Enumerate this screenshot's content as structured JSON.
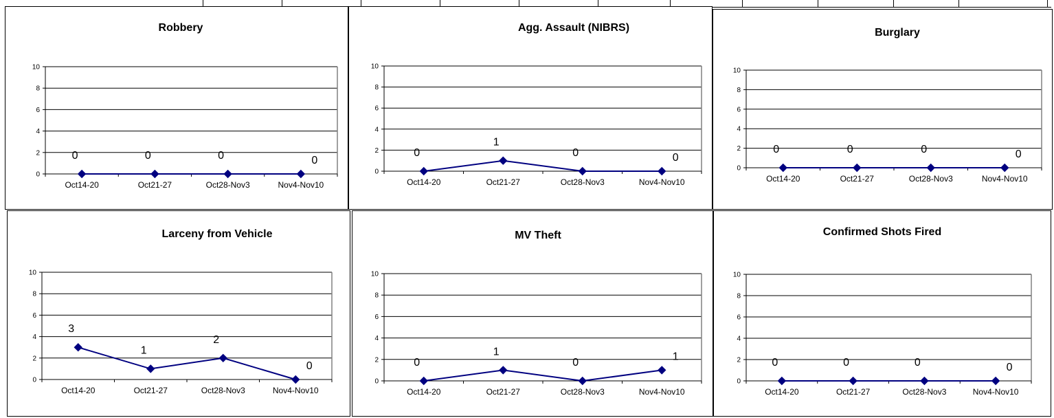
{
  "colors": {
    "series": "#000080",
    "grid": "#000000",
    "plot_border": "#808080"
  },
  "chart_data": [
    {
      "type": "line",
      "title": "Robbery",
      "categories": [
        "Oct14-20",
        "Oct21-27",
        "Oct28-Nov3",
        "Nov4-Nov10"
      ],
      "values": [
        0,
        0,
        0,
        0
      ],
      "data_labels": [
        "0",
        "0",
        "0",
        "0"
      ],
      "yticks": [
        "0",
        "2",
        "4",
        "6",
        "8",
        "10"
      ],
      "ylim": [
        0,
        10
      ],
      "grid": true,
      "legend": "none"
    },
    {
      "type": "line",
      "title": "Agg. Assault (NIBRS)",
      "categories": [
        "Oct14-20",
        "Oct21-27",
        "Oct28-Nov3",
        "Nov4-Nov10"
      ],
      "values": [
        0,
        1,
        0,
        0
      ],
      "data_labels": [
        "0",
        "1",
        "0",
        "0"
      ],
      "yticks": [
        "0",
        "2",
        "4",
        "6",
        "8",
        "10"
      ],
      "ylim": [
        0,
        10
      ],
      "grid": true,
      "legend": "none"
    },
    {
      "type": "line",
      "title": "Burglary",
      "categories": [
        "Oct14-20",
        "Oct21-27",
        "Oct28-Nov3",
        "Nov4-Nov10"
      ],
      "values": [
        0,
        0,
        0,
        0
      ],
      "data_labels": [
        "0",
        "0",
        "0",
        "0"
      ],
      "yticks": [
        "0",
        "2",
        "4",
        "6",
        "8",
        "10"
      ],
      "ylim": [
        0,
        10
      ],
      "grid": true,
      "legend": "none"
    },
    {
      "type": "line",
      "title": "Larceny from Vehicle",
      "categories": [
        "Oct14-20",
        "Oct21-27",
        "Oct28-Nov3",
        "Nov4-Nov10"
      ],
      "values": [
        3,
        1,
        2,
        0
      ],
      "data_labels": [
        "3",
        "1",
        "2",
        "0"
      ],
      "yticks": [
        "0",
        "2",
        "4",
        "6",
        "8",
        "10"
      ],
      "ylim": [
        0,
        10
      ],
      "grid": true,
      "legend": "none"
    },
    {
      "type": "line",
      "title": "MV Theft",
      "categories": [
        "Oct14-20",
        "Oct21-27",
        "Oct28-Nov3",
        "Nov4-Nov10"
      ],
      "values": [
        0,
        1,
        0,
        1
      ],
      "data_labels": [
        "0",
        "1",
        "0",
        "1"
      ],
      "yticks": [
        "0",
        "2",
        "4",
        "6",
        "8",
        "10"
      ],
      "ylim": [
        0,
        10
      ],
      "grid": true,
      "legend": "none"
    },
    {
      "type": "line",
      "title": "Confirmed Shots Fired",
      "categories": [
        "Oct14-20",
        "Oct21-27",
        "Oct28-Nov3",
        "Nov4-Nov10"
      ],
      "values": [
        0,
        0,
        0,
        0
      ],
      "data_labels": [
        "0",
        "0",
        "0",
        "0"
      ],
      "yticks": [
        "0",
        "2",
        "4",
        "6",
        "8",
        "10"
      ],
      "ylim": [
        0,
        10
      ],
      "grid": true,
      "legend": "none"
    }
  ]
}
